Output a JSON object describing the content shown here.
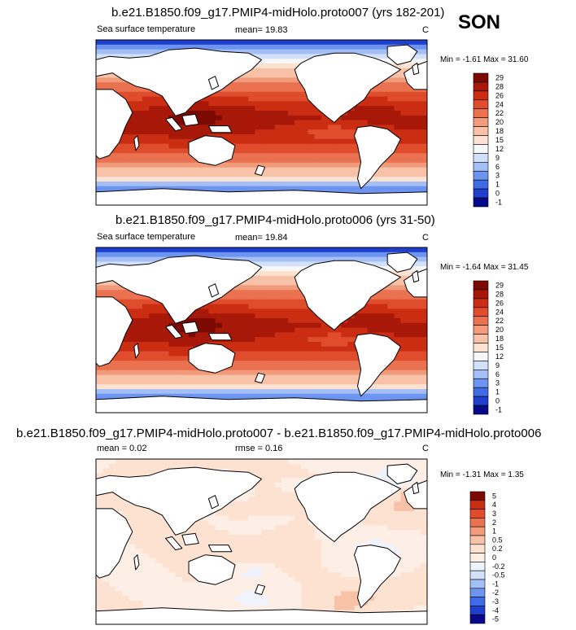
{
  "season": "SON",
  "colors": {
    "abs": [
      "#08088a",
      "#1f3fcf",
      "#3f6be6",
      "#6d94f0",
      "#a3bff6",
      "#d2e0fa",
      "#f7f7f7",
      "#fde2d2",
      "#f8c2a8",
      "#f29b7a",
      "#ea7250",
      "#df4d2c",
      "#cb2d13",
      "#a81808",
      "#7d0a02"
    ],
    "diff": [
      "#08088a",
      "#1f3fcf",
      "#3f6be6",
      "#6d94f0",
      "#a3bff6",
      "#d2e0fa",
      "#eef3fd",
      "#fdeee6",
      "#fde2d2",
      "#f8c2a8",
      "#f29b7a",
      "#ea7250",
      "#df4d2c",
      "#cb2d13",
      "#7d0a02"
    ]
  },
  "panels": [
    {
      "title": "b.e21.B1850.f09_g17.PMIP4-midHolo.proto007 (yrs 182-201)",
      "left": "Sea surface temperature",
      "mean": "mean=  19.83",
      "unit": "C",
      "minmax": "Min = -1.61 Max = 31.60",
      "levels": [
        "29",
        "28",
        "26",
        "24",
        "22",
        "20",
        "18",
        "15",
        "12",
        "9",
        "6",
        "3",
        "1",
        "0",
        "-1"
      ],
      "field": "sst"
    },
    {
      "title": "b.e21.B1850.f09_g17.PMIP4-midHolo.proto006 (yrs 31-50)",
      "left": "Sea surface temperature",
      "mean": "mean=  19.84",
      "unit": "C",
      "minmax": "Min = -1.64 Max = 31.45",
      "levels": [
        "29",
        "28",
        "26",
        "24",
        "22",
        "20",
        "18",
        "15",
        "12",
        "9",
        "6",
        "3",
        "1",
        "0",
        "-1"
      ],
      "field": "sst"
    },
    {
      "title": "b.e21.B1850.f09_g17.PMIP4-midHolo.proto007 - b.e21.B1850.f09_g17.PMIP4-midHolo.proto006",
      "left": "mean =  0.02",
      "mean": "rmse =  0.16",
      "unit": "C",
      "minmax": "Min = -1.31 Max =  1.35",
      "levels": [
        "5",
        "4",
        "3",
        "2",
        "1",
        "0.5",
        "0.2",
        "0",
        "-0.2",
        "-0.5",
        "-1",
        "-2",
        "-3",
        "-4",
        "-5"
      ],
      "field": "diff"
    }
  ],
  "chart_data": [
    {
      "type": "heatmap",
      "title": "b.e21.B1850.f09_g17.PMIP4-midHolo.proto007 (yrs 182-201)",
      "variable": "Sea surface temperature",
      "units": "C",
      "mean": 19.83,
      "min": -1.61,
      "max": 31.6,
      "contour_levels": [
        -1,
        0,
        1,
        3,
        6,
        9,
        12,
        15,
        18,
        20,
        22,
        24,
        26,
        28,
        29
      ]
    },
    {
      "type": "heatmap",
      "title": "b.e21.B1850.f09_g17.PMIP4-midHolo.proto006 (yrs 31-50)",
      "variable": "Sea surface temperature",
      "units": "C",
      "mean": 19.84,
      "min": -1.64,
      "max": 31.45,
      "contour_levels": [
        -1,
        0,
        1,
        3,
        6,
        9,
        12,
        15,
        18,
        20,
        22,
        24,
        26,
        28,
        29
      ]
    },
    {
      "type": "heatmap",
      "title": "b.e21.B1850.f09_g17.PMIP4-midHolo.proto007 - b.e21.B1850.f09_g17.PMIP4-midHolo.proto006",
      "units": "C",
      "mean": 0.02,
      "rmse": 0.16,
      "min": -1.31,
      "max": 1.35,
      "contour_levels": [
        -5,
        -4,
        -3,
        -2,
        -1,
        -0.5,
        -0.2,
        0,
        0.2,
        0.5,
        1,
        2,
        3,
        4,
        5
      ]
    }
  ]
}
